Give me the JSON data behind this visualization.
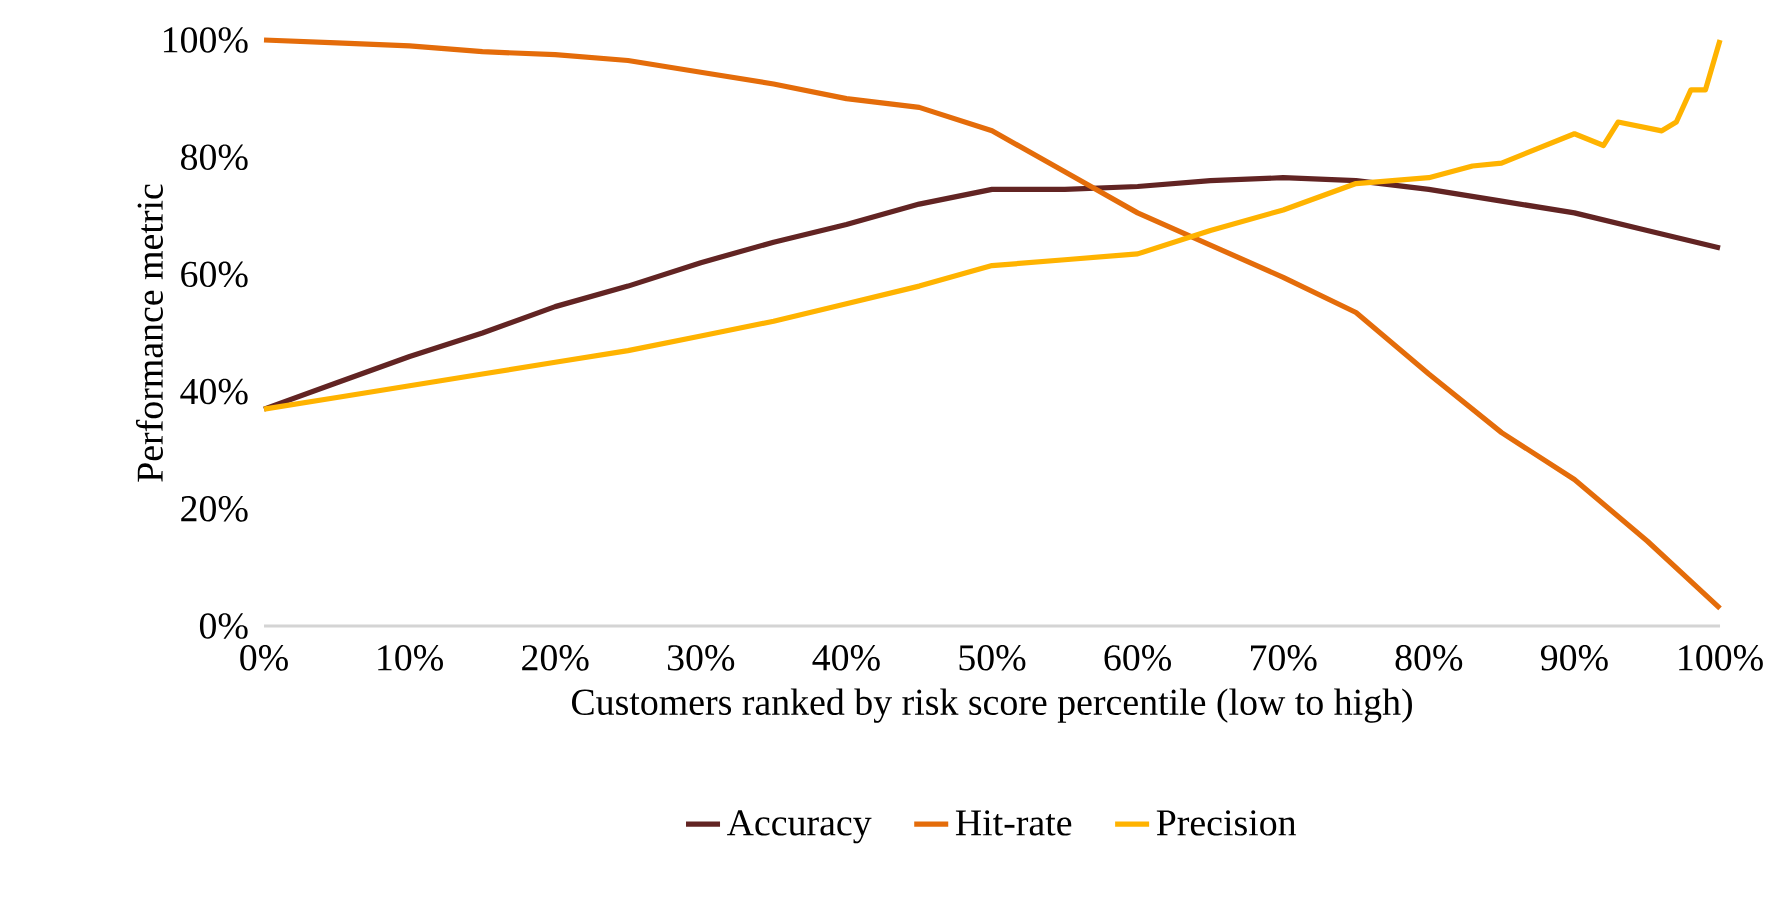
{
  "chart_data": {
    "type": "line",
    "xlabel": "Customers ranked by risk score percentile (low to high)",
    "ylabel": "Performance metric",
    "xlim": [
      0,
      100
    ],
    "ylim": [
      0,
      100
    ],
    "xticks": [
      {
        "value": 0,
        "label": "0%"
      },
      {
        "value": 10,
        "label": "10%"
      },
      {
        "value": 20,
        "label": "20%"
      },
      {
        "value": 30,
        "label": "30%"
      },
      {
        "value": 40,
        "label": "40%"
      },
      {
        "value": 50,
        "label": "50%"
      },
      {
        "value": 60,
        "label": "60%"
      },
      {
        "value": 70,
        "label": "70%"
      },
      {
        "value": 80,
        "label": "80%"
      },
      {
        "value": 90,
        "label": "90%"
      },
      {
        "value": 100,
        "label": "100%"
      }
    ],
    "yticks": [
      {
        "value": 0,
        "label": "0%"
      },
      {
        "value": 20,
        "label": "20%"
      },
      {
        "value": 40,
        "label": "40%"
      },
      {
        "value": 60,
        "label": "60%"
      },
      {
        "value": 80,
        "label": "80%"
      },
      {
        "value": 100,
        "label": "100%"
      }
    ],
    "legend": "bottom",
    "series": [
      {
        "name": "Accuracy",
        "color": "#622423",
        "x": [
          0,
          5,
          10,
          15,
          20,
          25,
          30,
          35,
          40,
          45,
          50,
          55,
          60,
          65,
          70,
          75,
          80,
          85,
          90,
          95,
          100
        ],
        "values": [
          37,
          41.5,
          46,
          50,
          54.5,
          58,
          62,
          65.5,
          68.5,
          72,
          74.5,
          74.5,
          75,
          76,
          76.5,
          76,
          74.5,
          72.5,
          70.5,
          67.5,
          64.5
        ]
      },
      {
        "name": "Hit-rate",
        "color": "#e46c0a",
        "x": [
          0,
          5,
          10,
          15,
          20,
          25,
          30,
          35,
          40,
          45,
          50,
          55,
          60,
          65,
          70,
          75,
          80,
          85,
          90,
          95,
          100
        ],
        "values": [
          100,
          99.5,
          99,
          98,
          97.5,
          96.5,
          94.5,
          92.5,
          90,
          88.5,
          84.5,
          77.5,
          70.5,
          65,
          59.5,
          53.5,
          43,
          33,
          25,
          14.5,
          3
        ]
      },
      {
        "name": "Precision",
        "color": "#ffb300",
        "x": [
          0,
          5,
          10,
          15,
          20,
          25,
          30,
          35,
          40,
          45,
          50,
          55,
          60,
          65,
          70,
          75,
          80,
          83,
          85,
          90,
          92,
          93,
          96,
          97,
          98,
          99,
          100
        ],
        "values": [
          37,
          39,
          41,
          43,
          45,
          47,
          49.5,
          52,
          55,
          58,
          61.5,
          62.5,
          63.5,
          67.5,
          71,
          75.5,
          76.5,
          78.5,
          79,
          84,
          82,
          86,
          84.5,
          86,
          91.5,
          91.5,
          100
        ]
      }
    ]
  }
}
